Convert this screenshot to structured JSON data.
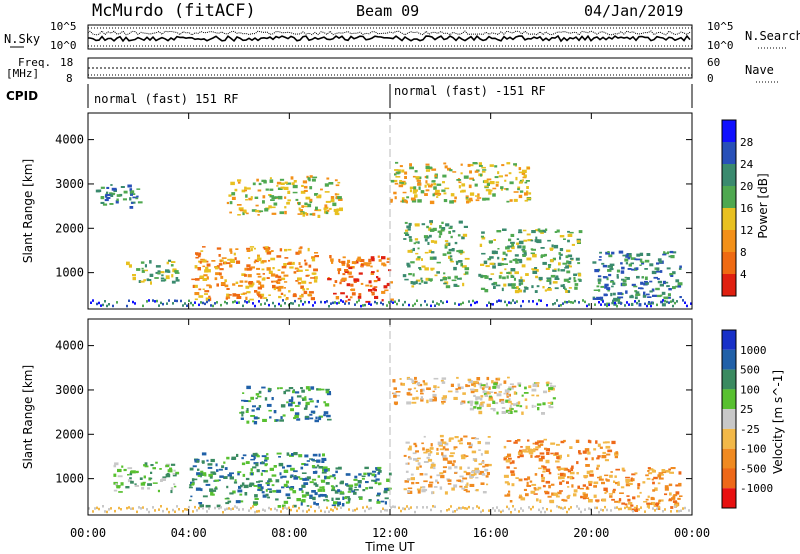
{
  "header": {
    "title": "McMurdo (fitACF)",
    "beam": "Beam 09",
    "date": "04/Jan/2019"
  },
  "noise_panel": {
    "left_label": "N.Sky",
    "right_label": "N.Search",
    "left_ticks": [
      "10^5",
      "10^0"
    ],
    "right_ticks": [
      "10^5",
      "10^0"
    ]
  },
  "freq_panel": {
    "left_label_1": "Freq.",
    "left_label_2": "[MHz]",
    "right_label": "Nave",
    "left_ticks": [
      "18",
      "8"
    ],
    "right_ticks": [
      "60",
      "0"
    ]
  },
  "cpid_panel": {
    "label": "CPID",
    "segments": [
      "normal (fast) 151 RF",
      "normal (fast) -151 RF"
    ]
  },
  "x_axis": {
    "label": "Time UT",
    "ticks": [
      "00:00",
      "04:00",
      "08:00",
      "12:00",
      "16:00",
      "20:00",
      "00:00"
    ]
  },
  "chart_data": [
    {
      "type": "heatmap",
      "panel": "power",
      "ylabel": "Slant Range [km]",
      "yticks": [
        1000,
        2000,
        3000,
        4000
      ],
      "ylim": [
        180,
        4600
      ],
      "xlim_hours": [
        0,
        24
      ],
      "colorbar": {
        "label": "Power [dB]",
        "ticks": [
          "4",
          "8",
          "12",
          "16",
          "20",
          "24",
          "28"
        ],
        "colors": [
          "#1010ff",
          "#2850b8",
          "#3a8a6e",
          "#4fa850",
          "#e8c020",
          "#f39018",
          "#ef6a12",
          "#e02010"
        ]
      },
      "echo_regions": [
        {
          "t_start": 0.3,
          "t_end": 2.0,
          "r_low": 2500,
          "r_high": 3000,
          "level": 2
        },
        {
          "t_start": 1.5,
          "t_end": 3.5,
          "r_low": 800,
          "r_high": 1300,
          "level": 3
        },
        {
          "t_start": 4.0,
          "t_end": 9.0,
          "r_low": 400,
          "r_high": 1600,
          "level": 5
        },
        {
          "t_start": 5.5,
          "t_end": 10.0,
          "r_low": 2300,
          "r_high": 3200,
          "level": 4
        },
        {
          "t_start": 9.5,
          "t_end": 12.0,
          "r_low": 350,
          "r_high": 1400,
          "level": 6
        },
        {
          "t_start": 12.0,
          "t_end": 17.5,
          "r_low": 2600,
          "r_high": 3500,
          "level": 4
        },
        {
          "t_start": 12.5,
          "t_end": 15.0,
          "r_low": 700,
          "r_high": 2200,
          "level": 3
        },
        {
          "t_start": 15.5,
          "t_end": 19.5,
          "r_low": 600,
          "r_high": 2000,
          "level": 3
        },
        {
          "t_start": 20.0,
          "t_end": 23.5,
          "r_low": 300,
          "r_high": 1500,
          "level": 2
        }
      ]
    },
    {
      "type": "heatmap",
      "panel": "velocity",
      "ylabel": "Slant Range [km]",
      "yticks": [
        1000,
        2000,
        3000,
        4000
      ],
      "ylim": [
        180,
        4600
      ],
      "xlim_hours": [
        0,
        24
      ],
      "colorbar": {
        "label": "Velocity [m s^-1]",
        "ticks": [
          "1000",
          "500",
          "100",
          "25",
          "-25",
          "-100",
          "-500",
          "-1000"
        ],
        "colors": [
          "#1830c8",
          "#2060a8",
          "#3a8a60",
          "#58c030",
          "#c8c8c8",
          "#f2b848",
          "#f08a20",
          "#ee6818",
          "#e81010"
        ]
      },
      "echo_regions": [
        {
          "t_start": 1.0,
          "t_end": 3.5,
          "r_low": 700,
          "r_high": 1400,
          "level": 3
        },
        {
          "t_start": 4.0,
          "t_end": 9.5,
          "r_low": 400,
          "r_high": 1600,
          "level": 2
        },
        {
          "t_start": 6.0,
          "t_end": 9.5,
          "r_low": 2300,
          "r_high": 3100,
          "level": 2
        },
        {
          "t_start": 9.0,
          "t_end": 12.0,
          "r_low": 400,
          "r_high": 1300,
          "level": 2
        },
        {
          "t_start": 12.0,
          "t_end": 17.0,
          "r_low": 2700,
          "r_high": 3300,
          "level": 5
        },
        {
          "t_start": 15.0,
          "t_end": 18.5,
          "r_low": 2500,
          "r_high": 3200,
          "level": 4
        },
        {
          "t_start": 12.5,
          "t_end": 16.0,
          "r_low": 700,
          "r_high": 2000,
          "level": 5
        },
        {
          "t_start": 16.5,
          "t_end": 21.0,
          "r_low": 500,
          "r_high": 1900,
          "level": 6
        },
        {
          "t_start": 21.0,
          "t_end": 23.5,
          "r_low": 300,
          "r_high": 1300,
          "level": 6
        }
      ]
    }
  ]
}
